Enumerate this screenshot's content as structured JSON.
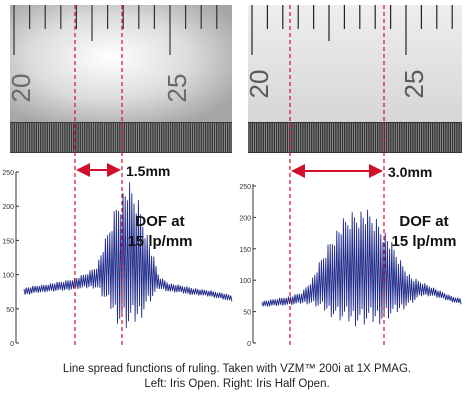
{
  "chart_data": [
    {
      "type": "line",
      "panel": "left",
      "scale_labels": [
        "20",
        "25"
      ],
      "width_label": "1.5mm",
      "annotation_lines": [
        "DOF at",
        "15 lp/mm"
      ],
      "yticks": [
        0,
        50,
        100,
        150,
        200,
        250
      ],
      "ylim": [
        0,
        250
      ],
      "series": [
        {
          "x": [
            0,
            0.05,
            0.1,
            0.15,
            0.2,
            0.25,
            0.3,
            0.35,
            0.4,
            0.45,
            0.5,
            0.55,
            0.6,
            0.65,
            0.7,
            0.75,
            0.8,
            0.85,
            0.9,
            0.95,
            1
          ],
          "mean": [
            75,
            78,
            80,
            82,
            84,
            87,
            91,
            97,
            108,
            120,
            128,
            120,
            104,
            88,
            81,
            79,
            76,
            74,
            72,
            69,
            65
          ],
          "amplitude": [
            6,
            6,
            6,
            7,
            8,
            9,
            12,
            18,
            55,
            95,
            115,
            95,
            50,
            10,
            7,
            6,
            6,
            5,
            5,
            5,
            5
          ]
        }
      ]
    },
    {
      "type": "line",
      "panel": "right",
      "scale_labels": [
        "20",
        "25"
      ],
      "width_label": "3.0mm",
      "annotation_lines": [
        "DOF at",
        "15 lp/mm"
      ],
      "yticks": [
        0,
        50,
        100,
        150,
        200,
        250
      ],
      "ylim": [
        0,
        250
      ],
      "series": [
        {
          "x": [
            0,
            0.05,
            0.1,
            0.15,
            0.2,
            0.25,
            0.3,
            0.35,
            0.4,
            0.45,
            0.5,
            0.55,
            0.6,
            0.65,
            0.7,
            0.75,
            0.8,
            0.85,
            0.9,
            0.95,
            1
          ],
          "mean": [
            62,
            64,
            66,
            68,
            72,
            82,
            95,
            106,
            114,
            119,
            121,
            118,
            110,
            100,
            90,
            84,
            86,
            82,
            76,
            70,
            66
          ],
          "amplitude": [
            5,
            6,
            7,
            8,
            10,
            22,
            45,
            68,
            85,
            95,
            98,
            94,
            82,
            62,
            40,
            22,
            12,
            8,
            6,
            5,
            5
          ]
        }
      ]
    }
  ],
  "caption": {
    "line1": "Line spread functions of ruling. Taken with VZM™ 200i at 1X PMAG.",
    "line2": "Left: Iris Open. Right: Iris Half Open."
  }
}
